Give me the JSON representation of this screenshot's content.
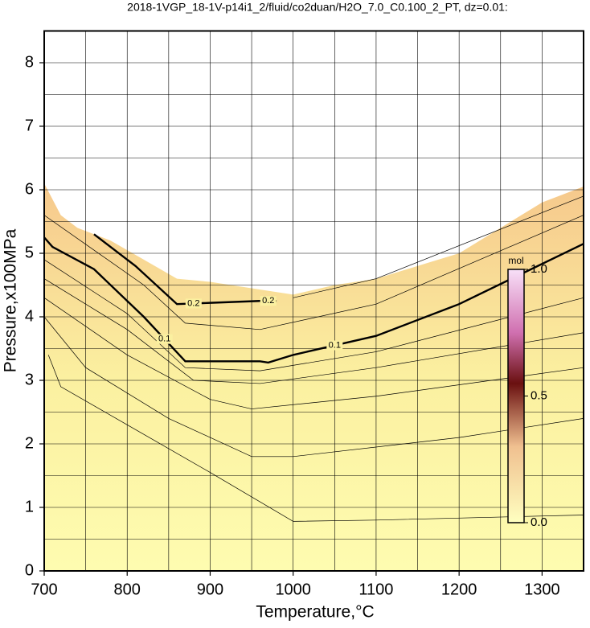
{
  "chart_data": {
    "type": "contour",
    "title": "2018-1VGP_18-1V-p14i1_2/fluid/co2duan/H2O_7.0_C0.100_2_PT, dz=0.01:",
    "x_label": "Temperature,°C",
    "y_label": "Pressure,x100MPa",
    "xlim": [
      700,
      1350
    ],
    "ylim": [
      0,
      8.5
    ],
    "xticks": [
      700,
      800,
      900,
      1000,
      1100,
      1200,
      1300
    ],
    "yticks": [
      0,
      1,
      2,
      3,
      4,
      5,
      6,
      7,
      8
    ],
    "x_gridlines": [
      700,
      750,
      800,
      850,
      900,
      950,
      1000,
      1050,
      1100,
      1150,
      1200,
      1250,
      1300
    ],
    "y_gridlines": [
      0,
      0.5,
      1,
      1.5,
      2,
      2.5,
      3,
      3.5,
      4,
      4.5,
      5,
      5.5,
      6,
      6.5,
      7,
      7.5,
      8
    ],
    "field_boundary": {
      "x": [
        700,
        720,
        740,
        780,
        820,
        860,
        900,
        950,
        1000,
        1050,
        1100,
        1150,
        1200,
        1250,
        1300,
        1350
      ],
      "y": [
        6.1,
        5.6,
        5.4,
        5.2,
        4.9,
        4.6,
        4.55,
        4.45,
        4.35,
        4.5,
        4.6,
        4.8,
        5.0,
        5.4,
        5.8,
        6.05
      ]
    },
    "contours": [
      {
        "x": [
          705,
          720,
          800,
          900,
          1000,
          1100,
          1350
        ],
        "y": [
          3.4,
          2.9,
          2.3,
          1.55,
          0.78,
          0.8,
          0.88
        ]
      },
      {
        "x": [
          700,
          750,
          850,
          950,
          1000,
          1200,
          1350
        ],
        "y": [
          4.0,
          3.2,
          2.4,
          1.8,
          1.8,
          2.1,
          2.4
        ]
      },
      {
        "x": [
          700,
          800,
          900,
          950,
          1100,
          1350
        ],
        "y": [
          4.3,
          3.4,
          2.7,
          2.55,
          2.75,
          3.2
        ]
      },
      {
        "x": [
          700,
          800,
          880,
          960,
          1100,
          1350
        ],
        "y": [
          4.6,
          3.8,
          3.0,
          2.95,
          3.2,
          3.75
        ]
      },
      {
        "x": [
          700,
          800,
          870,
          960,
          1100,
          1350
        ],
        "y": [
          4.9,
          4.05,
          3.2,
          3.15,
          3.45,
          4.3
        ]
      },
      {
        "level": 0.1,
        "x": [
          700,
          710,
          760,
          820,
          870,
          960,
          970,
          1000,
          1100,
          1200,
          1350
        ],
        "y": [
          5.25,
          5.1,
          4.75,
          4.0,
          3.3,
          3.3,
          3.28,
          3.4,
          3.7,
          4.2,
          5.15
        ]
      },
      {
        "x": [
          700,
          760,
          820,
          870,
          960,
          1100,
          1350
        ],
        "y": [
          5.6,
          5.05,
          4.5,
          3.9,
          3.8,
          4.2,
          5.6
        ]
      },
      {
        "level": 0.2,
        "x": [
          760,
          810,
          860,
          900,
          960,
          980
        ],
        "y": [
          5.3,
          4.8,
          4.2,
          4.22,
          4.25,
          4.25
        ]
      },
      {
        "x": [
          1000,
          1100,
          1350
        ],
        "y": [
          4.3,
          4.6,
          5.9
        ]
      }
    ],
    "colorbar": {
      "label": "mol",
      "lim": [
        0,
        1
      ],
      "ticks": [
        {
          "value": 0,
          "label": "0.0"
        },
        0.5,
        {
          "value": 1,
          "label": "1.0"
        }
      ]
    }
  }
}
